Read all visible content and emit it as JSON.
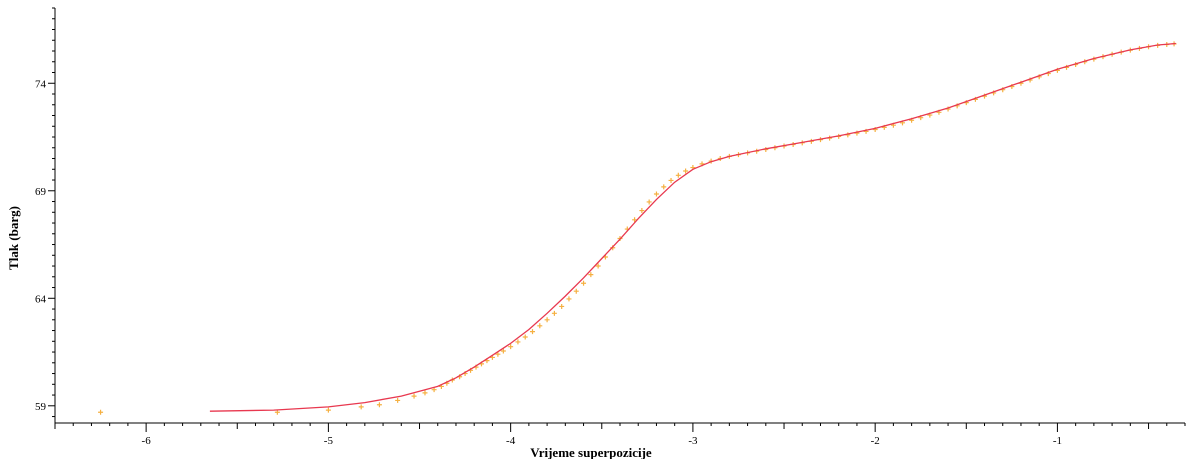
{
  "chart_data": {
    "type": "scatter",
    "title": "",
    "xlabel": "Vrijeme superpozicije",
    "ylabel": "Tlak (barg)",
    "xlim": [
      -6.5,
      -0.3
    ],
    "ylim": [
      58.2,
      77.5
    ],
    "x_ticks": [
      -6,
      -5,
      -4,
      -3,
      -2,
      -1
    ],
    "y_ticks": [
      59,
      64,
      69,
      74
    ],
    "grid": false,
    "legend": "none",
    "series": [
      {
        "kind": "points",
        "marker": "plus",
        "color": "#f5b041",
        "points": [
          [
            -6.25,
            58.7
          ],
          [
            -5.28,
            58.7
          ],
          [
            -5.0,
            58.8
          ],
          [
            -4.82,
            58.95
          ],
          [
            -4.72,
            59.05
          ],
          [
            -4.62,
            59.25
          ],
          [
            -4.53,
            59.45
          ],
          [
            -4.47,
            59.6
          ],
          [
            -4.42,
            59.75
          ],
          [
            -4.38,
            59.9
          ],
          [
            -4.35,
            60.05
          ],
          [
            -4.32,
            60.2
          ],
          [
            -4.28,
            60.35
          ],
          [
            -4.25,
            60.5
          ],
          [
            -4.22,
            60.65
          ],
          [
            -4.19,
            60.8
          ],
          [
            -4.16,
            60.95
          ],
          [
            -4.13,
            61.1
          ],
          [
            -4.1,
            61.25
          ],
          [
            -4.07,
            61.4
          ],
          [
            -4.04,
            61.55
          ],
          [
            -4.0,
            61.75
          ],
          [
            -3.96,
            61.97
          ],
          [
            -3.92,
            62.2
          ],
          [
            -3.88,
            62.45
          ],
          [
            -3.84,
            62.72
          ],
          [
            -3.8,
            63.0
          ],
          [
            -3.76,
            63.3
          ],
          [
            -3.72,
            63.62
          ],
          [
            -3.68,
            63.97
          ],
          [
            -3.64,
            64.33
          ],
          [
            -3.6,
            64.7
          ],
          [
            -3.56,
            65.1
          ],
          [
            -3.52,
            65.5
          ],
          [
            -3.48,
            65.92
          ],
          [
            -3.44,
            66.35
          ],
          [
            -3.4,
            66.78
          ],
          [
            -3.36,
            67.22
          ],
          [
            -3.32,
            67.65
          ],
          [
            -3.28,
            68.08
          ],
          [
            -3.24,
            68.48
          ],
          [
            -3.2,
            68.85
          ],
          [
            -3.16,
            69.18
          ],
          [
            -3.12,
            69.48
          ],
          [
            -3.08,
            69.72
          ],
          [
            -3.04,
            69.92
          ],
          [
            -3.0,
            70.08
          ],
          [
            -2.95,
            70.25
          ],
          [
            -2.9,
            70.38
          ],
          [
            -2.85,
            70.5
          ],
          [
            -2.8,
            70.6
          ],
          [
            -2.75,
            70.68
          ],
          [
            -2.7,
            70.76
          ],
          [
            -2.65,
            70.84
          ],
          [
            -2.6,
            70.92
          ],
          [
            -2.55,
            71.0
          ],
          [
            -2.5,
            71.08
          ],
          [
            -2.45,
            71.15
          ],
          [
            -2.4,
            71.23
          ],
          [
            -2.35,
            71.3
          ],
          [
            -2.3,
            71.38
          ],
          [
            -2.25,
            71.45
          ],
          [
            -2.2,
            71.53
          ],
          [
            -2.15,
            71.6
          ],
          [
            -2.1,
            71.68
          ],
          [
            -2.05,
            71.76
          ],
          [
            -2.0,
            71.85
          ],
          [
            -1.95,
            71.95
          ],
          [
            -1.9,
            72.05
          ],
          [
            -1.85,
            72.16
          ],
          [
            -1.8,
            72.28
          ],
          [
            -1.75,
            72.4
          ],
          [
            -1.7,
            72.52
          ],
          [
            -1.65,
            72.65
          ],
          [
            -1.6,
            72.8
          ],
          [
            -1.55,
            72.95
          ],
          [
            -1.5,
            73.1
          ],
          [
            -1.45,
            73.25
          ],
          [
            -1.4,
            73.4
          ],
          [
            -1.35,
            73.55
          ],
          [
            -1.3,
            73.7
          ],
          [
            -1.25,
            73.85
          ],
          [
            -1.2,
            74.0
          ],
          [
            -1.15,
            74.15
          ],
          [
            -1.1,
            74.3
          ],
          [
            -1.05,
            74.45
          ],
          [
            -1.0,
            74.6
          ],
          [
            -0.95,
            74.74
          ],
          [
            -0.9,
            74.87
          ],
          [
            -0.85,
            75.0
          ],
          [
            -0.8,
            75.12
          ],
          [
            -0.75,
            75.24
          ],
          [
            -0.7,
            75.35
          ],
          [
            -0.65,
            75.45
          ],
          [
            -0.6,
            75.54
          ],
          [
            -0.55,
            75.62
          ],
          [
            -0.5,
            75.7
          ],
          [
            -0.45,
            75.76
          ],
          [
            -0.4,
            75.8
          ],
          [
            -0.36,
            75.83
          ]
        ]
      },
      {
        "kind": "line",
        "color": "#e8384f",
        "points": [
          [
            -5.65,
            58.75
          ],
          [
            -5.3,
            58.8
          ],
          [
            -5.0,
            58.95
          ],
          [
            -4.8,
            59.15
          ],
          [
            -4.6,
            59.45
          ],
          [
            -4.4,
            59.9
          ],
          [
            -4.3,
            60.3
          ],
          [
            -4.2,
            60.8
          ],
          [
            -4.1,
            61.35
          ],
          [
            -4.0,
            61.9
          ],
          [
            -3.9,
            62.55
          ],
          [
            -3.8,
            63.3
          ],
          [
            -3.7,
            64.1
          ],
          [
            -3.6,
            64.95
          ],
          [
            -3.5,
            65.85
          ],
          [
            -3.4,
            66.75
          ],
          [
            -3.3,
            67.7
          ],
          [
            -3.2,
            68.6
          ],
          [
            -3.1,
            69.4
          ],
          [
            -3.0,
            70.0
          ],
          [
            -2.9,
            70.35
          ],
          [
            -2.8,
            70.6
          ],
          [
            -2.6,
            70.95
          ],
          [
            -2.4,
            71.25
          ],
          [
            -2.2,
            71.55
          ],
          [
            -2.0,
            71.9
          ],
          [
            -1.8,
            72.35
          ],
          [
            -1.6,
            72.85
          ],
          [
            -1.4,
            73.45
          ],
          [
            -1.2,
            74.05
          ],
          [
            -1.0,
            74.65
          ],
          [
            -0.8,
            75.15
          ],
          [
            -0.6,
            75.55
          ],
          [
            -0.45,
            75.78
          ],
          [
            -0.35,
            75.85
          ]
        ]
      }
    ]
  }
}
